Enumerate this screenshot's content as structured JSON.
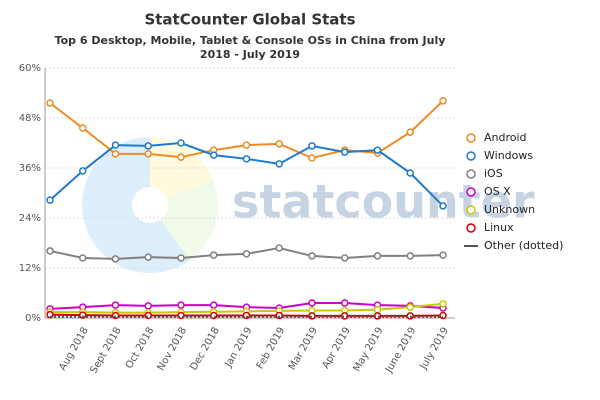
{
  "chart_data": {
    "type": "line",
    "title": "StatCounter Global Stats",
    "subtitle": [
      "Top 6 Desktop, Mobile, Tablet & Console OSs in China from July",
      "2018 - July 2019"
    ],
    "watermark": "statcounter",
    "categories": [
      null,
      "Aug 2018",
      "Sept 2018",
      "Oct 2018",
      "Nov 2018",
      "Dec 2018",
      "Jan 2019",
      "Feb 2019",
      "Mar 2019",
      "Apr 2019",
      "May 2019",
      "June 2019",
      "July 2019"
    ],
    "ylim": [
      0,
      60
    ],
    "yticks": [
      {
        "value": 0,
        "label": "0%"
      },
      {
        "value": 12,
        "label": "12%"
      },
      {
        "value": 24,
        "label": "24%"
      },
      {
        "value": 36,
        "label": "36%"
      },
      {
        "value": 48,
        "label": "48%"
      },
      {
        "value": 60,
        "label": "60%"
      }
    ],
    "grid": true,
    "legend": "right",
    "series": [
      {
        "name": "Android",
        "color": "#f08a24",
        "values": [
          51.6,
          45.6,
          39.4,
          39.4,
          38.6,
          40.3,
          41.5,
          41.8,
          38.4,
          40.3,
          39.6,
          44.6,
          52.1
        ]
      },
      {
        "name": "Windows",
        "color": "#1f7acc",
        "values": [
          28.3,
          35.3,
          41.5,
          41.3,
          42.0,
          39.1,
          38.2,
          37.0,
          41.3,
          39.8,
          40.3,
          34.8,
          26.9
        ]
      },
      {
        "name": "iOS",
        "color": "#808080",
        "values": [
          16.1,
          14.4,
          14.2,
          14.6,
          14.4,
          15.1,
          15.4,
          16.8,
          14.9,
          14.4,
          14.9,
          14.9,
          15.1
        ]
      },
      {
        "name": "OS X",
        "color": "#cc00cc",
        "values": [
          2.2,
          2.6,
          3.1,
          2.9,
          3.1,
          3.1,
          2.6,
          2.4,
          3.6,
          3.6,
          3.1,
          2.9,
          2.4
        ]
      },
      {
        "name": "Unknown",
        "color": "#c8c800",
        "values": [
          1.4,
          1.4,
          1.3,
          1.3,
          1.4,
          1.5,
          1.6,
          1.7,
          1.8,
          1.8,
          2.0,
          2.6,
          3.4
        ]
      },
      {
        "name": "Linux",
        "color": "#cc0000",
        "values": [
          0.8,
          0.7,
          0.6,
          0.6,
          0.6,
          0.6,
          0.6,
          0.6,
          0.5,
          0.5,
          0.5,
          0.5,
          0.6
        ]
      },
      {
        "name": "Other (dotted)",
        "color": "#555555",
        "style": "dotted",
        "values": [
          0.3,
          0.3,
          0.3,
          0.3,
          0.3,
          0.3,
          0.3,
          0.3,
          0.3,
          0.3,
          0.3,
          0.3,
          0.3
        ]
      }
    ]
  }
}
